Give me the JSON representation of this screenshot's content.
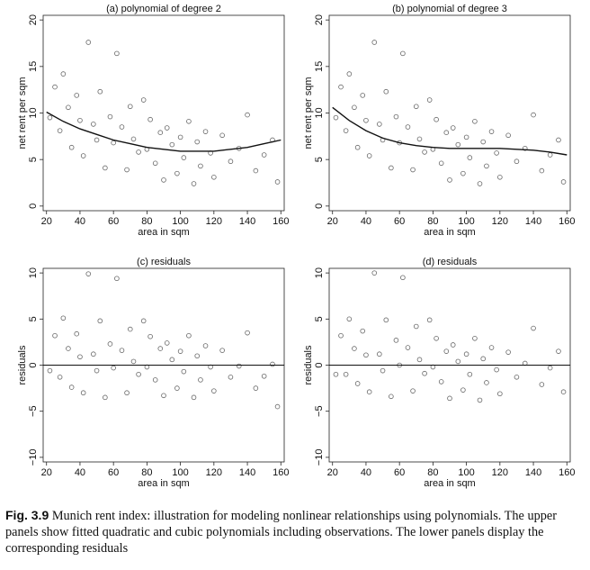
{
  "figure": {
    "caption_label": "Fig. 3.9",
    "caption_text": "Munich rent index: illustration for modeling nonlinear relationships using polynomials. The upper panels show fitted quadratic and cubic polynomials including observations. The lower panels display the corresponding residuals"
  },
  "chart_data": [
    {
      "id": "a",
      "type": "scatter",
      "title": "(a) polynomial of degree 2",
      "xlabel": "area in sqm",
      "ylabel": "net rent per sqm",
      "xlim": [
        18,
        162
      ],
      "ylim": [
        -0.5,
        20.5
      ],
      "xticks": [
        20,
        40,
        60,
        80,
        100,
        120,
        140,
        160
      ],
      "yticks": [
        0,
        5,
        10,
        15,
        20
      ],
      "series": [
        {
          "kind": "observations",
          "marker": "hollow-circle",
          "color": "#666666",
          "x": [
            22,
            25,
            28,
            30,
            33,
            35,
            38,
            40,
            42,
            45,
            48,
            50,
            52,
            55,
            58,
            60,
            62,
            65,
            68,
            70,
            72,
            75,
            78,
            80,
            82,
            85,
            88,
            90,
            92,
            95,
            98,
            100,
            102,
            105,
            108,
            110,
            112,
            115,
            118,
            120,
            125,
            130,
            135,
            140,
            145,
            150,
            155,
            158
          ],
          "y": [
            9.5,
            12.8,
            8.1,
            14.2,
            10.6,
            6.3,
            11.9,
            9.2,
            5.4,
            17.6,
            8.8,
            7.1,
            12.3,
            4.1,
            9.6,
            6.8,
            16.4,
            8.5,
            3.9,
            10.7,
            7.2,
            5.8,
            11.4,
            6.1,
            9.3,
            4.6,
            7.9,
            2.8,
            8.4,
            6.6,
            3.5,
            7.4,
            5.2,
            9.1,
            2.4,
            6.9,
            4.3,
            8.0,
            5.7,
            3.1,
            7.6,
            4.8,
            6.2,
            9.8,
            3.8,
            5.5,
            7.1,
            2.6
          ]
        },
        {
          "kind": "fit",
          "name": "quadratic",
          "color": "#111111",
          "x": [
            20,
            30,
            40,
            50,
            60,
            70,
            80,
            90,
            100,
            110,
            120,
            130,
            140,
            150,
            160
          ],
          "y": [
            10.1,
            9.1,
            8.3,
            7.7,
            7.1,
            6.7,
            6.3,
            6.1,
            5.9,
            5.9,
            5.9,
            6.1,
            6.3,
            6.7,
            7.1
          ]
        }
      ]
    },
    {
      "id": "b",
      "type": "scatter",
      "title": "(b) polynomial of degree 3",
      "xlabel": "area in sqm",
      "ylabel": "net rent per sqm",
      "xlim": [
        18,
        162
      ],
      "ylim": [
        -0.5,
        20.5
      ],
      "xticks": [
        20,
        40,
        60,
        80,
        100,
        120,
        140,
        160
      ],
      "yticks": [
        0,
        5,
        10,
        15,
        20
      ],
      "series": [
        {
          "kind": "observations",
          "marker": "hollow-circle",
          "color": "#666666",
          "x": [
            22,
            25,
            28,
            30,
            33,
            35,
            38,
            40,
            42,
            45,
            48,
            50,
            52,
            55,
            58,
            60,
            62,
            65,
            68,
            70,
            72,
            75,
            78,
            80,
            82,
            85,
            88,
            90,
            92,
            95,
            98,
            100,
            102,
            105,
            108,
            110,
            112,
            115,
            118,
            120,
            125,
            130,
            135,
            140,
            145,
            150,
            155,
            158
          ],
          "y": [
            9.5,
            12.8,
            8.1,
            14.2,
            10.6,
            6.3,
            11.9,
            9.2,
            5.4,
            17.6,
            8.8,
            7.1,
            12.3,
            4.1,
            9.6,
            6.8,
            16.4,
            8.5,
            3.9,
            10.7,
            7.2,
            5.8,
            11.4,
            6.1,
            9.3,
            4.6,
            7.9,
            2.8,
            8.4,
            6.6,
            3.5,
            7.4,
            5.2,
            9.1,
            2.4,
            6.9,
            4.3,
            8.0,
            5.7,
            3.1,
            7.6,
            4.8,
            6.2,
            9.8,
            3.8,
            5.5,
            7.1,
            2.6
          ]
        },
        {
          "kind": "fit",
          "name": "cubic",
          "color": "#111111",
          "x": [
            20,
            30,
            40,
            50,
            60,
            70,
            80,
            90,
            100,
            110,
            120,
            130,
            140,
            150,
            160
          ],
          "y": [
            10.6,
            9.2,
            8.1,
            7.3,
            6.8,
            6.5,
            6.3,
            6.2,
            6.2,
            6.2,
            6.2,
            6.1,
            6.0,
            5.8,
            5.5
          ]
        }
      ]
    },
    {
      "id": "c",
      "type": "scatter",
      "title": "(c) residuals",
      "xlabel": "area in sqm",
      "ylabel": "residuals",
      "xlim": [
        18,
        162
      ],
      "ylim": [
        -10.5,
        10.5
      ],
      "xticks": [
        20,
        40,
        60,
        80,
        100,
        120,
        140,
        160
      ],
      "yticks": [
        -10,
        -5,
        0,
        5,
        10
      ],
      "series": [
        {
          "kind": "observations",
          "marker": "hollow-circle",
          "color": "#666666",
          "x": [
            22,
            25,
            28,
            30,
            33,
            35,
            38,
            40,
            42,
            45,
            48,
            50,
            52,
            55,
            58,
            60,
            62,
            65,
            68,
            70,
            72,
            75,
            78,
            80,
            82,
            85,
            88,
            90,
            92,
            95,
            98,
            100,
            102,
            105,
            108,
            110,
            112,
            115,
            118,
            120,
            125,
            130,
            135,
            140,
            145,
            150,
            155,
            158
          ],
          "y": [
            -0.6,
            3.2,
            -1.3,
            5.1,
            1.8,
            -2.4,
            3.4,
            0.9,
            -3.0,
            9.9,
            1.2,
            -0.6,
            4.8,
            -3.5,
            2.3,
            -0.3,
            9.4,
            1.6,
            -3.0,
            3.9,
            0.4,
            -1.0,
            4.8,
            -0.2,
            3.1,
            -1.6,
            1.8,
            -3.3,
            2.4,
            0.6,
            -2.5,
            1.5,
            -0.7,
            3.2,
            -3.5,
            1.0,
            -1.6,
            2.1,
            -0.2,
            -2.8,
            1.6,
            -1.3,
            -0.1,
            3.5,
            -2.5,
            -1.2,
            0.1,
            -4.5
          ]
        },
        {
          "kind": "reference",
          "name": "zero line",
          "color": "#111111",
          "x": [
            18,
            162
          ],
          "y": [
            0,
            0
          ]
        }
      ]
    },
    {
      "id": "d",
      "type": "scatter",
      "title": "(d) residuals",
      "xlabel": "area in sqm",
      "ylabel": "residuals",
      "xlim": [
        18,
        162
      ],
      "ylim": [
        -10.5,
        10.5
      ],
      "xticks": [
        20,
        40,
        60,
        80,
        100,
        120,
        140,
        160
      ],
      "yticks": [
        -10,
        -5,
        0,
        5,
        10
      ],
      "series": [
        {
          "kind": "observations",
          "marker": "hollow-circle",
          "color": "#666666",
          "x": [
            22,
            25,
            28,
            30,
            33,
            35,
            38,
            40,
            42,
            45,
            48,
            50,
            52,
            55,
            58,
            60,
            62,
            65,
            68,
            70,
            72,
            75,
            78,
            80,
            82,
            85,
            88,
            90,
            92,
            95,
            98,
            100,
            102,
            105,
            108,
            110,
            112,
            115,
            118,
            120,
            125,
            130,
            135,
            140,
            145,
            150,
            155,
            158
          ],
          "y": [
            -1.0,
            3.2,
            -1.0,
            5.0,
            1.8,
            -2.0,
            3.7,
            1.1,
            -2.9,
            10.0,
            1.2,
            -0.6,
            4.9,
            -3.4,
            2.7,
            0.0,
            9.5,
            1.9,
            -2.8,
            4.2,
            0.6,
            -0.9,
            4.9,
            -0.2,
            2.9,
            -1.8,
            1.5,
            -3.6,
            2.2,
            0.4,
            -2.7,
            1.2,
            -1.0,
            2.9,
            -3.8,
            0.7,
            -1.9,
            1.9,
            -0.5,
            -3.1,
            1.4,
            -1.3,
            0.2,
            4.0,
            -2.1,
            -0.3,
            1.5,
            -2.9
          ]
        },
        {
          "kind": "reference",
          "name": "zero line",
          "color": "#111111",
          "x": [
            18,
            162
          ],
          "y": [
            0,
            0
          ]
        }
      ]
    }
  ]
}
